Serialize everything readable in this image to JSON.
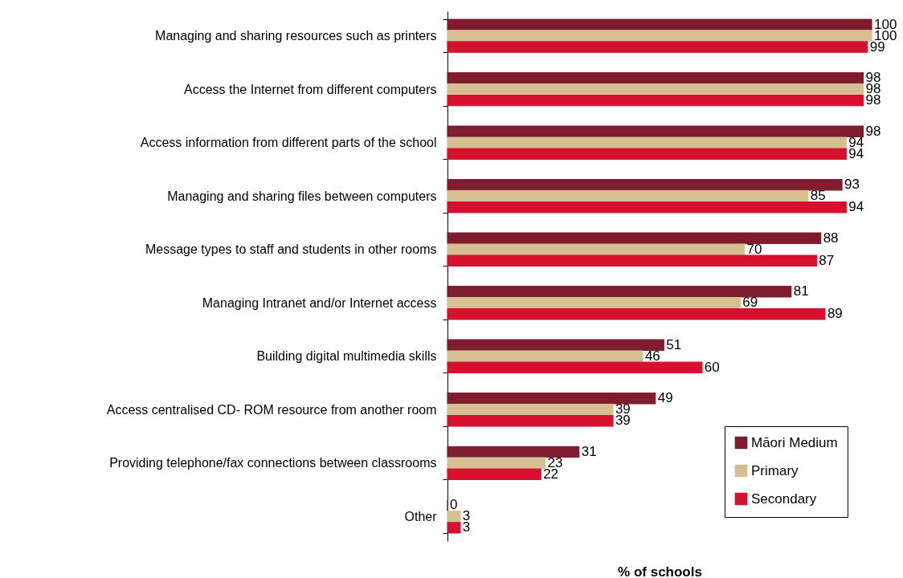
{
  "chart_data": {
    "type": "bar",
    "orientation": "horizontal",
    "xlabel": "% of schools",
    "categories": [
      "Managing and sharing resources such as printers",
      "Access the Internet from different computers",
      "Access information from different parts of the school",
      "Managing and sharing files between computers",
      "Message types to staff and students in other rooms",
      "Managing Intranet and/or Internet access",
      "Building digital multimedia skills",
      "Access centralised CD- ROM resource from another room",
      "Providing telephone/fax connections between classrooms",
      "Other"
    ],
    "series": [
      {
        "name": "Māori Medium",
        "color": "#7f1d2e",
        "values": [
          100,
          98,
          98,
          93,
          88,
          81,
          51,
          49,
          31,
          0
        ]
      },
      {
        "name": "Primary",
        "color": "#d6c092",
        "values": [
          100,
          98,
          94,
          85,
          70,
          69,
          46,
          39,
          23,
          3
        ]
      },
      {
        "name": "Secondary",
        "color": "#d81030",
        "values": [
          99,
          98,
          94,
          94,
          87,
          89,
          60,
          39,
          22,
          3
        ]
      }
    ],
    "xlim": [
      0,
      100
    ],
    "data_labels": true,
    "legend": "bottom right"
  }
}
